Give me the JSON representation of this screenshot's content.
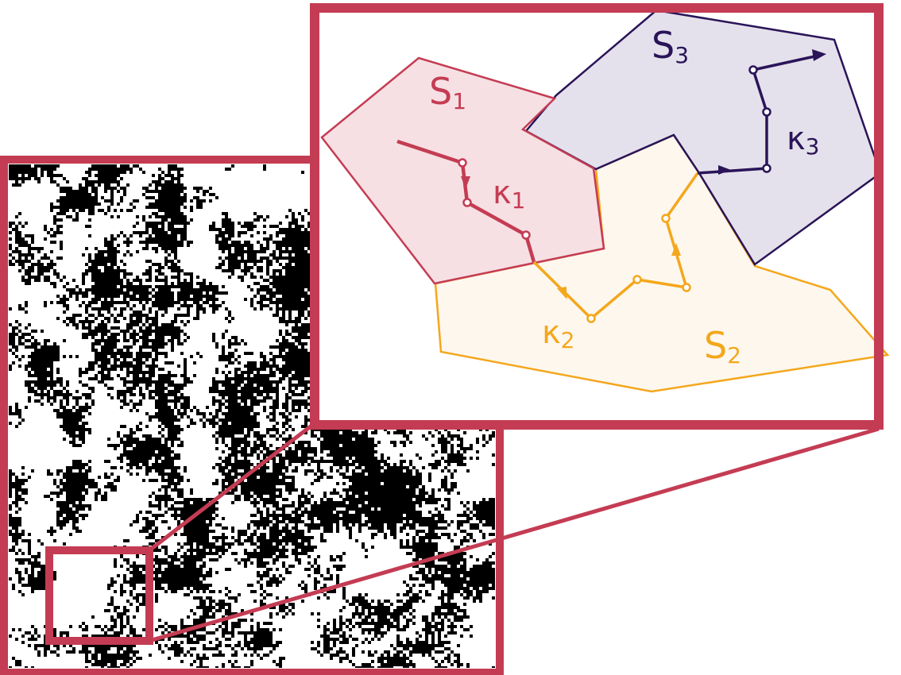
{
  "colors": {
    "frame": "#c43c53",
    "s1_stroke": "#c43c53",
    "s1_fill": "#f6e0e4",
    "s2_stroke": "#f4a71c",
    "s2_fill": "#fdf7ee",
    "s3_stroke": "#2a1458",
    "s3_fill": "#e4e1ec",
    "lattice_dark": "#000000",
    "lattice_light": "#ffffff"
  },
  "lattice": {
    "description_name": "binary-random-medium",
    "seed": 7
  },
  "regions": {
    "s1": {
      "label": "S",
      "sub": "1"
    },
    "s2": {
      "label": "S",
      "sub": "2"
    },
    "s3": {
      "label": "S",
      "sub": "3"
    }
  },
  "paths": {
    "k1": {
      "label": "κ",
      "sub": "1"
    },
    "k2": {
      "label": "κ",
      "sub": "2"
    },
    "k3": {
      "label": "κ",
      "sub": "3"
    }
  }
}
